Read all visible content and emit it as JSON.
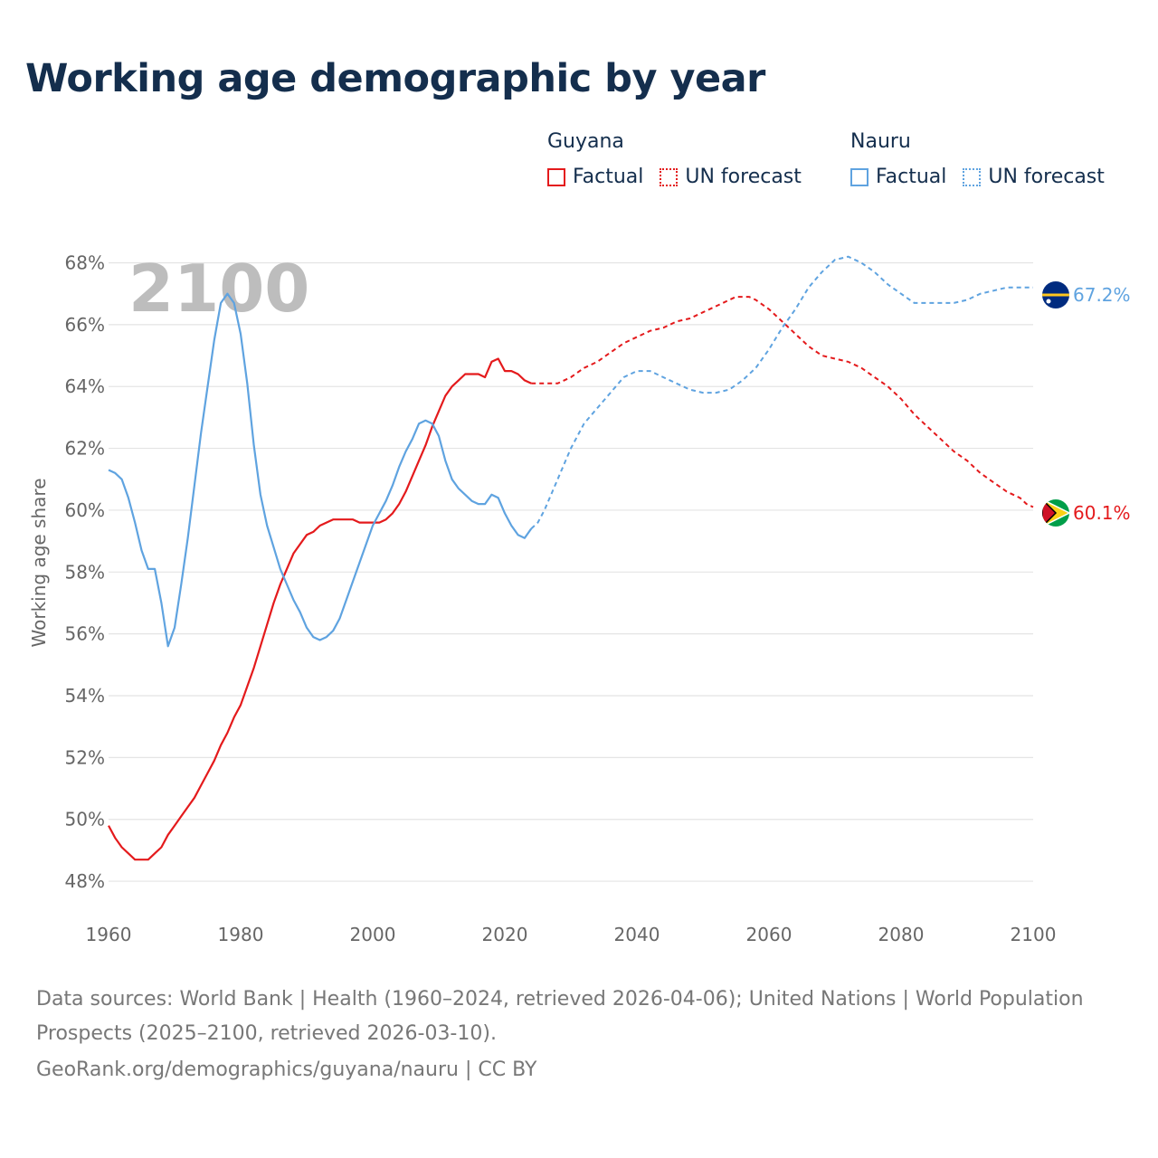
{
  "title": "Working age demographic by year",
  "legend": {
    "groups": [
      {
        "country": "Guyana",
        "factual": "Factual",
        "forecast": "UN forecast",
        "color": "#e41a1c"
      },
      {
        "country": "Nauru",
        "factual": "Factual",
        "forecast": "UN forecast",
        "color": "#5fa3e0"
      }
    ]
  },
  "footer": {
    "sources": "Data sources: World Bank | Health (1960–2024, retrieved 2026-04-06); United Nations | World Population Prospects (2025–2100, retrieved 2026-03-10).",
    "credit": "GeoRank.org/demographics/guyana/nauru | CC BY"
  },
  "chart_data": {
    "type": "line",
    "title": "Working age demographic by year",
    "xlabel": "",
    "ylabel": "Working age share",
    "current_year_label": "2100",
    "xlim": [
      1960,
      2100
    ],
    "ylim": [
      47.3,
      68.6
    ],
    "x_ticks": [
      1960,
      1980,
      2000,
      2020,
      2040,
      2060,
      2080,
      2100
    ],
    "y_ticks": [
      48,
      50,
      52,
      54,
      56,
      58,
      60,
      62,
      64,
      66,
      68
    ],
    "y_tick_suffix": "%",
    "forecast_start": 2024,
    "series": [
      {
        "name": "Guyana",
        "color": "#e41a1c",
        "end_label": "60.1%",
        "flag": "guyana-flag",
        "points": [
          [
            1960,
            49.8
          ],
          [
            1961,
            49.4
          ],
          [
            1962,
            49.1
          ],
          [
            1963,
            48.9
          ],
          [
            1964,
            48.7
          ],
          [
            1965,
            48.7
          ],
          [
            1966,
            48.7
          ],
          [
            1967,
            48.9
          ],
          [
            1968,
            49.1
          ],
          [
            1969,
            49.5
          ],
          [
            1970,
            49.8
          ],
          [
            1971,
            50.1
          ],
          [
            1972,
            50.4
          ],
          [
            1973,
            50.7
          ],
          [
            1974,
            51.1
          ],
          [
            1975,
            51.5
          ],
          [
            1976,
            51.9
          ],
          [
            1977,
            52.4
          ],
          [
            1978,
            52.8
          ],
          [
            1979,
            53.3
          ],
          [
            1980,
            53.7
          ],
          [
            1981,
            54.3
          ],
          [
            1982,
            54.9
          ],
          [
            1983,
            55.6
          ],
          [
            1984,
            56.3
          ],
          [
            1985,
            57.0
          ],
          [
            1986,
            57.6
          ],
          [
            1987,
            58.1
          ],
          [
            1988,
            58.6
          ],
          [
            1989,
            58.9
          ],
          [
            1990,
            59.2
          ],
          [
            1991,
            59.3
          ],
          [
            1992,
            59.5
          ],
          [
            1993,
            59.6
          ],
          [
            1994,
            59.7
          ],
          [
            1995,
            59.7
          ],
          [
            1996,
            59.7
          ],
          [
            1997,
            59.7
          ],
          [
            1998,
            59.6
          ],
          [
            1999,
            59.6
          ],
          [
            2000,
            59.6
          ],
          [
            2001,
            59.6
          ],
          [
            2002,
            59.7
          ],
          [
            2003,
            59.9
          ],
          [
            2004,
            60.2
          ],
          [
            2005,
            60.6
          ],
          [
            2006,
            61.1
          ],
          [
            2007,
            61.6
          ],
          [
            2008,
            62.1
          ],
          [
            2009,
            62.7
          ],
          [
            2010,
            63.2
          ],
          [
            2011,
            63.7
          ],
          [
            2012,
            64.0
          ],
          [
            2013,
            64.2
          ],
          [
            2014,
            64.4
          ],
          [
            2015,
            64.4
          ],
          [
            2016,
            64.4
          ],
          [
            2017,
            64.3
          ],
          [
            2018,
            64.8
          ],
          [
            2019,
            64.9
          ],
          [
            2020,
            64.5
          ],
          [
            2021,
            64.5
          ],
          [
            2022,
            64.4
          ],
          [
            2023,
            64.2
          ],
          [
            2024,
            64.1
          ],
          [
            2026,
            64.1
          ],
          [
            2028,
            64.1
          ],
          [
            2030,
            64.3
          ],
          [
            2032,
            64.6
          ],
          [
            2034,
            64.8
          ],
          [
            2036,
            65.1
          ],
          [
            2038,
            65.4
          ],
          [
            2040,
            65.6
          ],
          [
            2042,
            65.8
          ],
          [
            2044,
            65.9
          ],
          [
            2046,
            66.1
          ],
          [
            2048,
            66.2
          ],
          [
            2050,
            66.4
          ],
          [
            2052,
            66.6
          ],
          [
            2054,
            66.8
          ],
          [
            2055,
            66.9
          ],
          [
            2057,
            66.9
          ],
          [
            2058,
            66.8
          ],
          [
            2060,
            66.5
          ],
          [
            2062,
            66.1
          ],
          [
            2064,
            65.7
          ],
          [
            2066,
            65.3
          ],
          [
            2068,
            65.0
          ],
          [
            2070,
            64.9
          ],
          [
            2072,
            64.8
          ],
          [
            2074,
            64.6
          ],
          [
            2076,
            64.3
          ],
          [
            2078,
            64.0
          ],
          [
            2080,
            63.6
          ],
          [
            2082,
            63.1
          ],
          [
            2084,
            62.7
          ],
          [
            2086,
            62.3
          ],
          [
            2088,
            61.9
          ],
          [
            2090,
            61.6
          ],
          [
            2092,
            61.2
          ],
          [
            2094,
            60.9
          ],
          [
            2096,
            60.6
          ],
          [
            2098,
            60.4
          ],
          [
            2099,
            60.2
          ],
          [
            2100,
            60.1
          ]
        ]
      },
      {
        "name": "Nauru",
        "color": "#5fa3e0",
        "end_label": "67.2%",
        "flag": "nauru-flag",
        "points": [
          [
            1960,
            61.3
          ],
          [
            1961,
            61.2
          ],
          [
            1962,
            61.0
          ],
          [
            1963,
            60.4
          ],
          [
            1964,
            59.6
          ],
          [
            1965,
            58.7
          ],
          [
            1966,
            58.1
          ],
          [
            1967,
            58.1
          ],
          [
            1968,
            57.0
          ],
          [
            1969,
            55.6
          ],
          [
            1970,
            56.2
          ],
          [
            1971,
            57.6
          ],
          [
            1972,
            59.1
          ],
          [
            1973,
            60.8
          ],
          [
            1974,
            62.5
          ],
          [
            1975,
            64.0
          ],
          [
            1976,
            65.5
          ],
          [
            1977,
            66.7
          ],
          [
            1978,
            67.0
          ],
          [
            1979,
            66.7
          ],
          [
            1980,
            65.7
          ],
          [
            1981,
            64.1
          ],
          [
            1982,
            62.1
          ],
          [
            1983,
            60.5
          ],
          [
            1984,
            59.5
          ],
          [
            1985,
            58.8
          ],
          [
            1986,
            58.1
          ],
          [
            1987,
            57.6
          ],
          [
            1988,
            57.1
          ],
          [
            1989,
            56.7
          ],
          [
            1990,
            56.2
          ],
          [
            1991,
            55.9
          ],
          [
            1992,
            55.8
          ],
          [
            1993,
            55.9
          ],
          [
            1994,
            56.1
          ],
          [
            1995,
            56.5
          ],
          [
            1996,
            57.1
          ],
          [
            1997,
            57.7
          ],
          [
            1998,
            58.3
          ],
          [
            1999,
            58.9
          ],
          [
            2000,
            59.5
          ],
          [
            2001,
            59.9
          ],
          [
            2002,
            60.3
          ],
          [
            2003,
            60.8
          ],
          [
            2004,
            61.4
          ],
          [
            2005,
            61.9
          ],
          [
            2006,
            62.3
          ],
          [
            2007,
            62.8
          ],
          [
            2008,
            62.9
          ],
          [
            2009,
            62.8
          ],
          [
            2010,
            62.4
          ],
          [
            2011,
            61.6
          ],
          [
            2012,
            61.0
          ],
          [
            2013,
            60.7
          ],
          [
            2014,
            60.5
          ],
          [
            2015,
            60.3
          ],
          [
            2016,
            60.2
          ],
          [
            2017,
            60.2
          ],
          [
            2018,
            60.5
          ],
          [
            2019,
            60.4
          ],
          [
            2020,
            59.9
          ],
          [
            2021,
            59.5
          ],
          [
            2022,
            59.2
          ],
          [
            2023,
            59.1
          ],
          [
            2024,
            59.4
          ],
          [
            2025,
            59.6
          ],
          [
            2026,
            60.0
          ],
          [
            2028,
            61.0
          ],
          [
            2030,
            62.0
          ],
          [
            2032,
            62.8
          ],
          [
            2034,
            63.3
          ],
          [
            2036,
            63.8
          ],
          [
            2038,
            64.3
          ],
          [
            2040,
            64.5
          ],
          [
            2042,
            64.5
          ],
          [
            2044,
            64.3
          ],
          [
            2046,
            64.1
          ],
          [
            2048,
            63.9
          ],
          [
            2050,
            63.8
          ],
          [
            2052,
            63.8
          ],
          [
            2054,
            63.9
          ],
          [
            2056,
            64.2
          ],
          [
            2058,
            64.6
          ],
          [
            2060,
            65.2
          ],
          [
            2062,
            65.9
          ],
          [
            2064,
            66.5
          ],
          [
            2066,
            67.2
          ],
          [
            2068,
            67.7
          ],
          [
            2070,
            68.1
          ],
          [
            2072,
            68.2
          ],
          [
            2074,
            68.0
          ],
          [
            2076,
            67.7
          ],
          [
            2078,
            67.3
          ],
          [
            2080,
            67.0
          ],
          [
            2082,
            66.7
          ],
          [
            2084,
            66.7
          ],
          [
            2086,
            66.7
          ],
          [
            2088,
            66.7
          ],
          [
            2090,
            66.8
          ],
          [
            2092,
            67.0
          ],
          [
            2094,
            67.1
          ],
          [
            2096,
            67.2
          ],
          [
            2098,
            67.2
          ],
          [
            2100,
            67.2
          ]
        ]
      }
    ]
  }
}
